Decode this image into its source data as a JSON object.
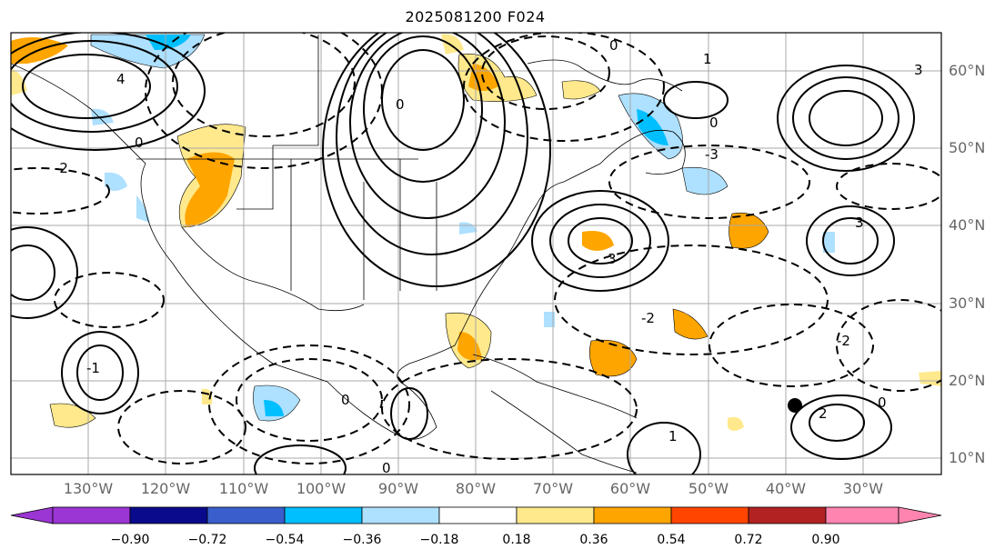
{
  "title": "2025081200 F024",
  "map": {
    "lon_labels": [
      "130°W",
      "120°W",
      "110°W",
      "100°W",
      "90°W",
      "80°W",
      "70°W",
      "60°W",
      "50°W",
      "40°W",
      "30°W"
    ],
    "lat_labels": [
      "60°N",
      "50°N",
      "40°N",
      "30°N",
      "20°N",
      "10°N"
    ],
    "contour_labels": [
      "0",
      "1",
      "2",
      "3",
      "4",
      "-1",
      "-2",
      "-3"
    ],
    "marker": {
      "lon_label": "~39°W",
      "lat_label": "~17°N"
    }
  },
  "colorbar": {
    "ticks": [
      "−0.90",
      "−0.72",
      "−0.54",
      "−0.36",
      "−0.18",
      "0.18",
      "0.36",
      "0.54",
      "0.72",
      "0.90"
    ],
    "colors": [
      "#9b35d3",
      "#0a0a8c",
      "#3a5fcd",
      "#00bfff",
      "#aee0ff",
      "#ffffff",
      "#ffe98c",
      "#ffa500",
      "#ff4500",
      "#b22222",
      "#ff85b0"
    ]
  }
}
